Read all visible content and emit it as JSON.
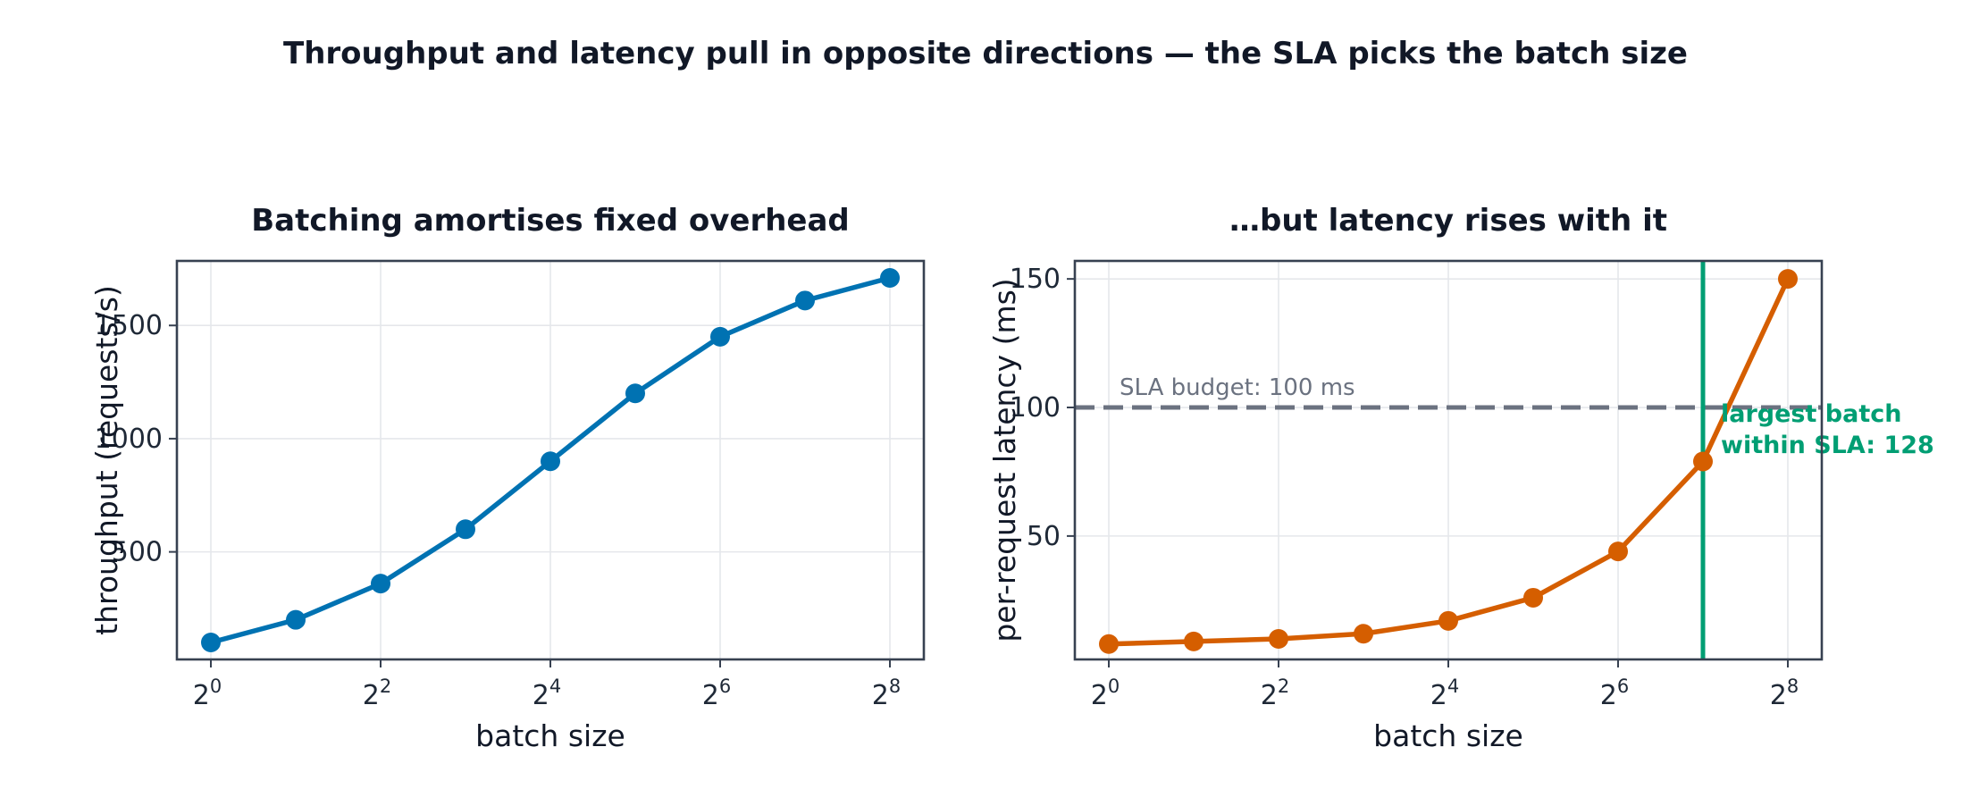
{
  "figure": {
    "title": "Throughput and latency pull in opposite directions — the SLA picks the batch size"
  },
  "chart_data": [
    {
      "type": "line",
      "title": "Batching amortises fixed overhead",
      "xlabel": "batch size",
      "ylabel": "throughput (requests/s)",
      "x_scale": "log2",
      "x": [
        1,
        2,
        4,
        8,
        16,
        32,
        64,
        128,
        256
      ],
      "xticks": [
        1,
        4,
        16,
        64,
        256
      ],
      "xtick_labels": [
        {
          "base": "2",
          "exp": "0"
        },
        {
          "base": "2",
          "exp": "2"
        },
        {
          "base": "2",
          "exp": "4"
        },
        {
          "base": "2",
          "exp": "6"
        },
        {
          "base": "2",
          "exp": "8"
        }
      ],
      "yticks": [
        500,
        1000,
        1500
      ],
      "ytick_labels": [
        "500",
        "1000",
        "1500"
      ],
      "ylim": [
        25,
        1785
      ],
      "grid": true,
      "series": [
        {
          "values": [
            100,
            200,
            360,
            600,
            900,
            1200,
            1450,
            1610,
            1710
          ],
          "color": "#0072B2"
        }
      ]
    },
    {
      "type": "line",
      "title": "…but latency rises with it",
      "xlabel": "batch size",
      "ylabel": "per-request latency (ms)",
      "x_scale": "log2",
      "x": [
        1,
        2,
        4,
        8,
        16,
        32,
        64,
        128,
        256
      ],
      "xticks": [
        1,
        4,
        16,
        64,
        256
      ],
      "xtick_labels": [
        {
          "base": "2",
          "exp": "0"
        },
        {
          "base": "2",
          "exp": "2"
        },
        {
          "base": "2",
          "exp": "4"
        },
        {
          "base": "2",
          "exp": "6"
        },
        {
          "base": "2",
          "exp": "8"
        }
      ],
      "yticks": [
        50,
        100,
        150
      ],
      "ytick_labels": [
        "50",
        "100",
        "150"
      ],
      "ylim": [
        2,
        157
      ],
      "grid": true,
      "series": [
        {
          "values": [
            8,
            9,
            10,
            12,
            17,
            26,
            44,
            79,
            150
          ],
          "color": "#D55E00"
        }
      ],
      "sla": {
        "value": 100,
        "label": "SLA budget: 100 ms",
        "color": "#6B7280"
      },
      "chosen_batch": {
        "x": 128,
        "label_lines": [
          "largest batch",
          "within SLA: 128"
        ],
        "color": "#009E73"
      }
    }
  ]
}
